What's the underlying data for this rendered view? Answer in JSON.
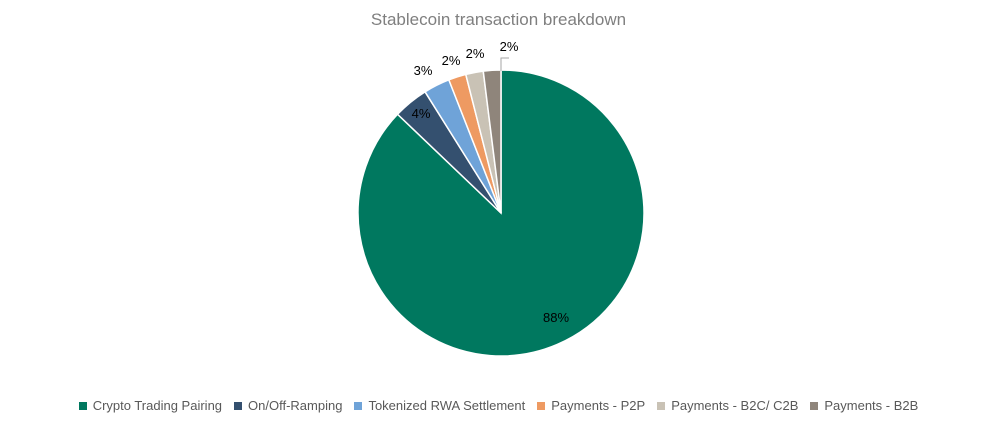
{
  "chart_data": {
    "type": "pie",
    "title": "Stablecoin transaction breakdown",
    "slices": [
      {
        "label": "Crypto Trading Pairing",
        "value": 88,
        "data_label": "88%",
        "color": "#00785f"
      },
      {
        "label": "On/Off-Ramping",
        "value": 4,
        "data_label": "4%",
        "color": "#34506f"
      },
      {
        "label": "Tokenized RWA Settlement",
        "value": 3,
        "data_label": "3%",
        "color": "#6fa3d8"
      },
      {
        "label": "Payments - P2P",
        "value": 2,
        "data_label": "2%",
        "color": "#ee9a62"
      },
      {
        "label": "Payments - B2C/ C2B",
        "value": 2,
        "data_label": "2%",
        "color": "#c9c2b5"
      },
      {
        "label": "Payments - B2B",
        "value": 2,
        "data_label": "2%",
        "color": "#8f857b"
      }
    ],
    "legend_position": "bottom"
  }
}
